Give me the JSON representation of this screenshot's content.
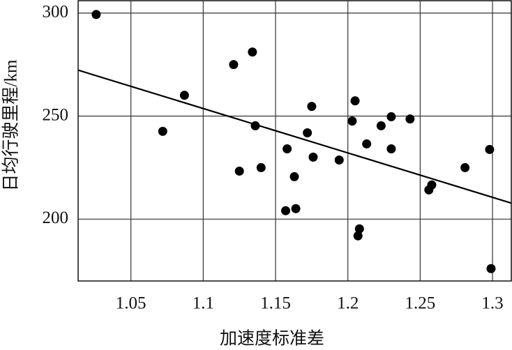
{
  "chart_data": {
    "type": "scatter",
    "x_label": "加速度标准差",
    "y_label": "日均行驶里程/km",
    "xlim": [
      1.0135,
      1.313
    ],
    "ylim": [
      170,
      306
    ],
    "xticks": [
      1.05,
      1.1,
      1.15,
      1.2,
      1.25,
      1.3
    ],
    "yticks": [
      200,
      250,
      300
    ],
    "grid": true,
    "color": "#000000",
    "x": [
      1.026,
      1.072,
      1.087,
      1.121,
      1.134,
      1.136,
      1.125,
      1.14,
      1.158,
      1.157,
      1.164,
      1.163,
      1.172,
      1.175,
      1.176,
      1.194,
      1.203,
      1.205,
      1.208,
      1.207,
      1.213,
      1.223,
      1.23,
      1.23,
      1.243,
      1.256,
      1.258,
      1.281,
      1.298,
      1.299
    ],
    "values": [
      299.3,
      242.6,
      260.1,
      275.0,
      281.1,
      245.3,
      223.3,
      225.0,
      234.1,
      204.1,
      205.1,
      220.6,
      241.9,
      254.7,
      230.1,
      228.7,
      247.6,
      257.4,
      195.3,
      191.9,
      236.5,
      245.3,
      249.7,
      234.1,
      248.6,
      214.2,
      216.6,
      225.0,
      233.8,
      176.0
    ],
    "trend_line": {
      "x": [
        1.0135,
        1.313
      ],
      "values": [
        272.3,
        207.8
      ]
    }
  }
}
